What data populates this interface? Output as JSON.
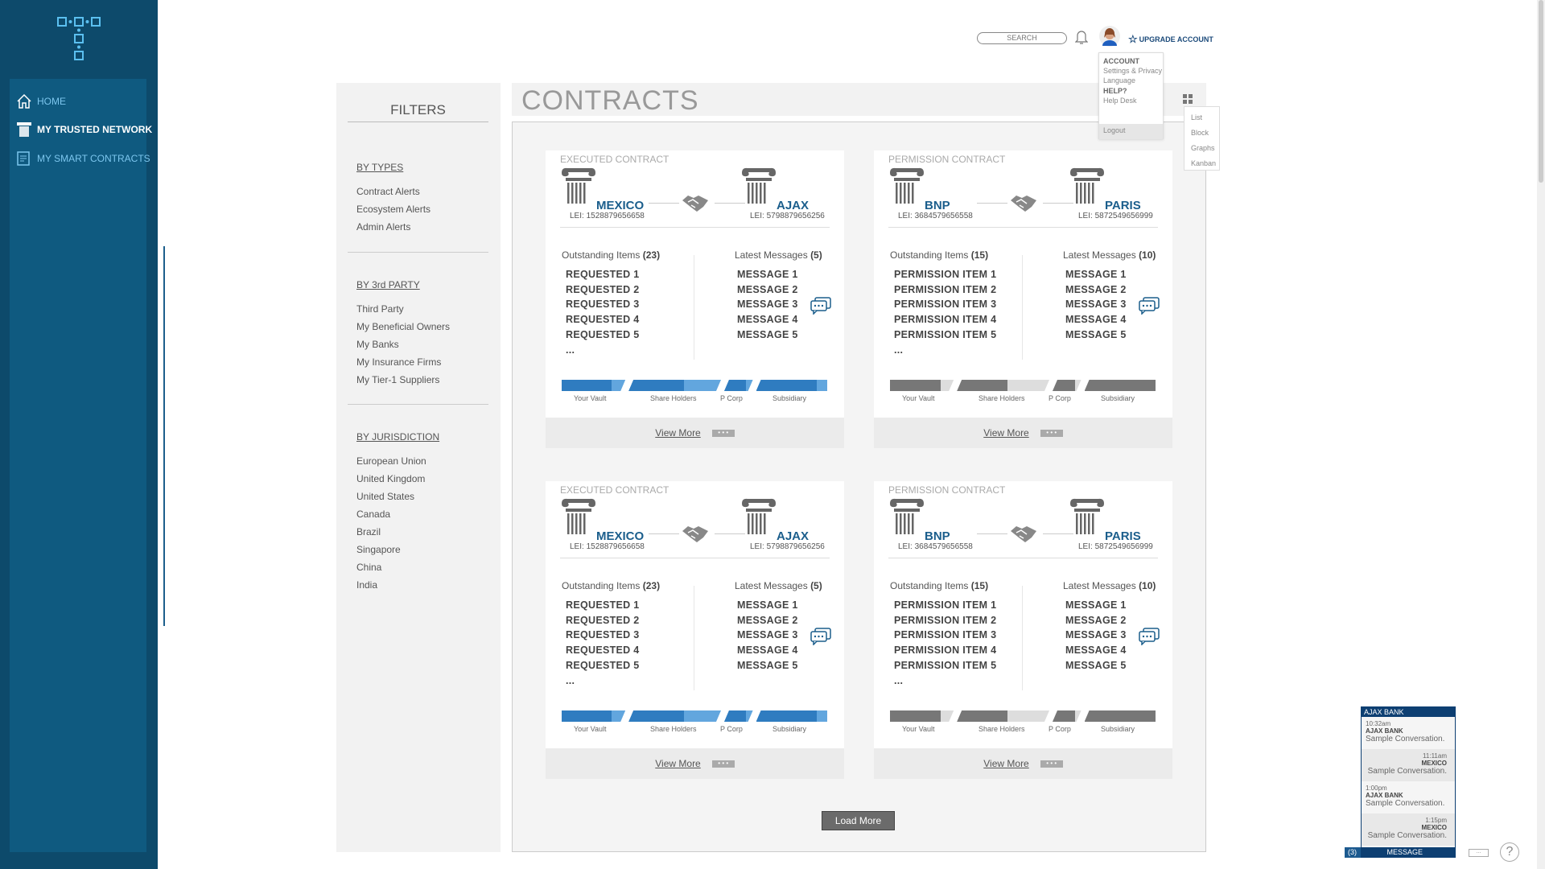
{
  "sidebar": {
    "items": [
      {
        "label": "HOME",
        "icon": "home-icon"
      },
      {
        "label": "MY TRUSTED NETWORK",
        "icon": "column-icon",
        "active": true
      },
      {
        "label": "MY SMART CONTRACTS",
        "icon": "contract-icon"
      }
    ]
  },
  "header": {
    "search_placeholder": "SEARCH",
    "upgrade_label": "UPGRADE ACCOUNT",
    "account_menu": {
      "account": "ACCOUNT",
      "settings": "Settings & Privacy",
      "language": "Language",
      "help": "HELP?",
      "help_desk": "Help Desk",
      "logout": "Logout"
    },
    "view_menu": [
      "List",
      "Block",
      "Graphs",
      "Kanban"
    ]
  },
  "filters": {
    "title": "FILTERS",
    "groups": [
      {
        "heading": "BY TYPES",
        "items": [
          "Contract Alerts",
          "Ecosystem Alerts",
          "Admin Alerts"
        ]
      },
      {
        "heading": "BY 3rd PARTY",
        "items": [
          "Third Party",
          "My Beneficial Owners",
          "My Banks",
          "My Insurance Firms",
          "My Tier-1 Suppliers"
        ]
      },
      {
        "heading": "BY JURISDICTION",
        "items": [
          "European Union",
          "United Kingdom",
          "United States",
          "Canada",
          "Brazil",
          "Singapore",
          "China",
          "India"
        ]
      }
    ]
  },
  "main": {
    "title": "CONTRACTS",
    "load_more": "Load More",
    "cards": [
      {
        "type": "EXECUTED CONTRACT",
        "left": {
          "name": "MEXICO",
          "lei": "LEI: 1528879656658"
        },
        "right": {
          "name": "AJAX",
          "lei": "LEI: 5798879656256"
        },
        "outstanding_label": "Outstanding Items",
        "outstanding_count": "(23)",
        "messages_label": "Latest Messages",
        "messages_count": "(5)",
        "items": [
          "REQUESTED 1",
          "REQUESTED 2",
          "REQUESTED 3",
          "REQUESTED 4",
          "REQUESTED 5",
          "..."
        ],
        "messages": [
          "MESSAGE 1",
          "MESSAGE 2",
          "MESSAGE 3",
          "MESSAGE 4",
          "MESSAGE 5"
        ],
        "progress": [
          {
            "label": "Your Vault",
            "fill": 0.78
          },
          {
            "label": "Share Holders",
            "fill": 0.6
          },
          {
            "label": "P Corp",
            "fill": 0.75
          },
          {
            "label": "Subsidiary",
            "fill": 0.85
          }
        ],
        "bar_colors": [
          "#2f7cc0",
          "#62a6de"
        ],
        "view_more": "View More"
      },
      {
        "type": "PERMISSION CONTRACT",
        "left": {
          "name": "BNP",
          "lei": "LEI: 3684579656558"
        },
        "right": {
          "name": "PARIS",
          "lei": "LEI: 5872549656999"
        },
        "outstanding_label": "Outstanding Items",
        "outstanding_count": "(15)",
        "messages_label": "Latest Messages",
        "messages_count": "(10)",
        "items": [
          "PERMISSION ITEM 1",
          "PERMISSION ITEM 2",
          "PERMISSION ITEM 3",
          "PERMISSION ITEM 4",
          "PERMISSION ITEM 5",
          "..."
        ],
        "messages": [
          "MESSAGE 1",
          "MESSAGE 2",
          "MESSAGE 3",
          "MESSAGE 4",
          "MESSAGE 5"
        ],
        "progress": [
          {
            "label": "Your Vault",
            "fill": 0.8
          },
          {
            "label": "Share Holders",
            "fill": 0.55
          },
          {
            "label": "P Corp",
            "fill": 0.8
          },
          {
            "label": "Subsidiary",
            "fill": 1.0
          }
        ],
        "bar_colors": [
          "#777777",
          "#dddddd"
        ],
        "view_more": "View More"
      },
      {
        "type": "EXECUTED CONTRACT",
        "left": {
          "name": "MEXICO",
          "lei": "LEI: 1528879656658"
        },
        "right": {
          "name": "AJAX",
          "lei": "LEI: 5798879656256"
        },
        "outstanding_label": "Outstanding Items",
        "outstanding_count": "(23)",
        "messages_label": "Latest Messages",
        "messages_count": "(5)",
        "items": [
          "REQUESTED 1",
          "REQUESTED 2",
          "REQUESTED 3",
          "REQUESTED 4",
          "REQUESTED 5",
          "..."
        ],
        "messages": [
          "MESSAGE 1",
          "MESSAGE 2",
          "MESSAGE 3",
          "MESSAGE 4",
          "MESSAGE 5"
        ],
        "progress": [
          {
            "label": "Your Vault",
            "fill": 0.78
          },
          {
            "label": "Share Holders",
            "fill": 0.6
          },
          {
            "label": "P Corp",
            "fill": 0.75
          },
          {
            "label": "Subsidiary",
            "fill": 0.85
          }
        ],
        "bar_colors": [
          "#2f7cc0",
          "#62a6de"
        ],
        "view_more": "View More"
      },
      {
        "type": "PERMISSION CONTRACT",
        "left": {
          "name": "BNP",
          "lei": "LEI: 3684579656558"
        },
        "right": {
          "name": "PARIS",
          "lei": "LEI: 5872549656999"
        },
        "outstanding_label": "Outstanding Items",
        "outstanding_count": "(15)",
        "messages_label": "Latest Messages",
        "messages_count": "(10)",
        "items": [
          "PERMISSION ITEM 1",
          "PERMISSION ITEM 2",
          "PERMISSION ITEM 3",
          "PERMISSION ITEM 4",
          "PERMISSION ITEM 5",
          "..."
        ],
        "messages": [
          "MESSAGE 1",
          "MESSAGE 2",
          "MESSAGE 3",
          "MESSAGE 4",
          "MESSAGE 5"
        ],
        "progress": [
          {
            "label": "Your Vault",
            "fill": 0.8
          },
          {
            "label": "Share Holders",
            "fill": 0.55
          },
          {
            "label": "P Corp",
            "fill": 0.8
          },
          {
            "label": "Subsidiary",
            "fill": 1.0
          }
        ],
        "bar_colors": [
          "#777777",
          "#dddddd"
        ],
        "view_more": "View More"
      }
    ]
  },
  "chat": {
    "title": "AJAX BANK",
    "messages": [
      {
        "time": "10:32am",
        "from": "AJAX BANK",
        "text": "Sample Conversation."
      },
      {
        "time": "11:11am",
        "from": "MEXICO",
        "text": "Sample Conversation."
      },
      {
        "time": "1:00pm",
        "from": "AJAX BANK",
        "text": "Sample Conversation."
      },
      {
        "time": "1:15pm",
        "from": "MEXICO",
        "text": "Sample Conversation."
      }
    ],
    "count": "(3)",
    "bar_label": "MESSAGE",
    "more": "...",
    "help": "?"
  },
  "colors": {
    "sidebar": "#0d4a6b",
    "accent": "#1b5e8c",
    "chat": "#0d3f72"
  }
}
